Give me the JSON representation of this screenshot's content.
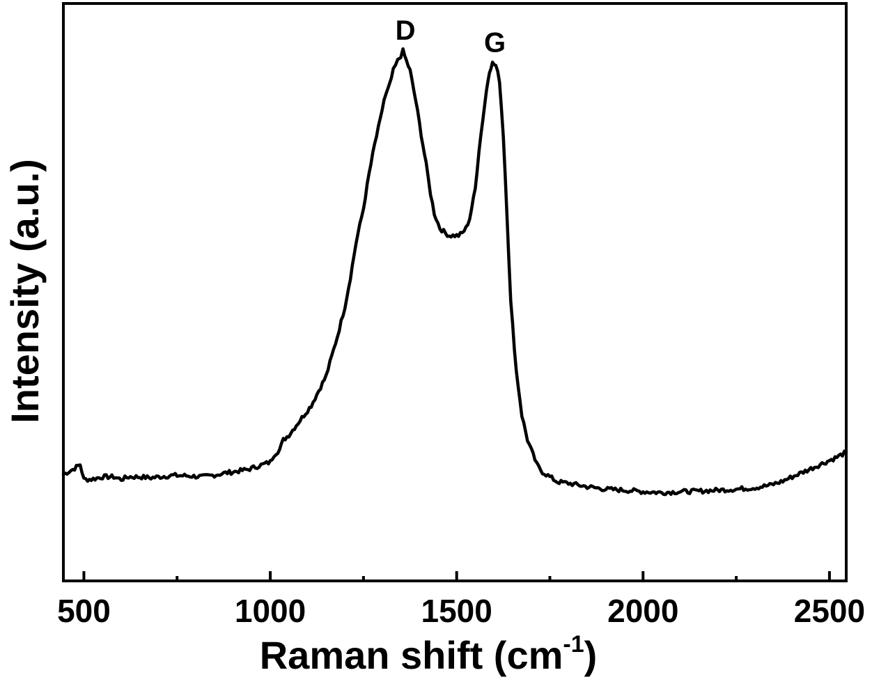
{
  "chart_data": {
    "type": "line",
    "xlabel": "Raman shift (cm",
    "xlabel_sup": "-1",
    "xlabel_close": ")",
    "ylabel": "Intensity (a.u.)",
    "xlim": [
      445,
      2545
    ],
    "ylim": [
      0,
      100
    ],
    "x_ticks": [
      500,
      1000,
      1500,
      2000,
      2500
    ],
    "x_tick_labels": [
      "500",
      "1000",
      "1500",
      "2000",
      "2500"
    ],
    "x_minor_ticks": [
      750,
      1250,
      1750,
      2250
    ],
    "y_ticks": [],
    "grid": false,
    "legend": "none",
    "color": "#000000",
    "annotations": [
      {
        "text": "D",
        "x": 1355,
        "y": 99
      },
      {
        "text": "G",
        "x": 1595,
        "y": 96.5
      }
    ],
    "series": [
      {
        "x": [
          445,
          470,
          490,
          500,
          520,
          550,
          580,
          600,
          620,
          650,
          680,
          700,
          740,
          780,
          820,
          860,
          880,
          900,
          940,
          960,
          980,
          1000,
          1010,
          1025,
          1035,
          1050,
          1070,
          1090,
          1110,
          1130,
          1150,
          1165,
          1180,
          1200,
          1215,
          1230,
          1250,
          1265,
          1280,
          1295,
          1305,
          1320,
          1330,
          1342,
          1350,
          1356,
          1365,
          1375,
          1390,
          1405,
          1418,
          1430,
          1440,
          1455,
          1470,
          1480,
          1495,
          1505,
          1515,
          1525,
          1535,
          1550,
          1560,
          1570,
          1580,
          1588,
          1596,
          1605,
          1615,
          1625,
          1635,
          1645,
          1660,
          1675,
          1690,
          1700,
          1715,
          1730,
          1750,
          1770,
          1800,
          1850,
          1900,
          1950,
          2000,
          2050,
          2100,
          2150,
          2200,
          2250,
          2300,
          2340,
          2370,
          2400,
          2430,
          2460,
          2490,
          2520,
          2545
        ],
        "y": [
          13,
          14,
          15,
          12,
          12,
          12.5,
          12.5,
          12,
          12.5,
          12.5,
          12.3,
          12.5,
          12.8,
          12.7,
          12.5,
          13,
          13.3,
          13.5,
          14,
          14.5,
          15,
          15.5,
          17,
          18,
          20,
          21,
          23,
          25,
          27,
          30,
          33,
          37,
          41,
          47,
          53,
          60,
          67,
          74,
          80,
          85,
          89,
          92,
          95,
          97,
          98,
          99,
          97,
          95,
          89,
          82,
          76,
          70,
          66,
          63,
          62,
          61.5,
          61.5,
          61.5,
          62,
          63,
          65,
          71,
          79,
          85,
          91,
          95,
          96.5,
          96,
          93,
          82,
          66,
          48,
          34,
          25,
          20,
          18,
          15,
          13.5,
          12.5,
          11.5,
          11.2,
          10.5,
          10,
          9.8,
          9.5,
          9.3,
          9.5,
          9.6,
          9.8,
          10,
          10.3,
          10.8,
          11.5,
          12.5,
          13.5,
          14.5,
          15.5,
          16.5,
          17.5
        ]
      }
    ]
  }
}
